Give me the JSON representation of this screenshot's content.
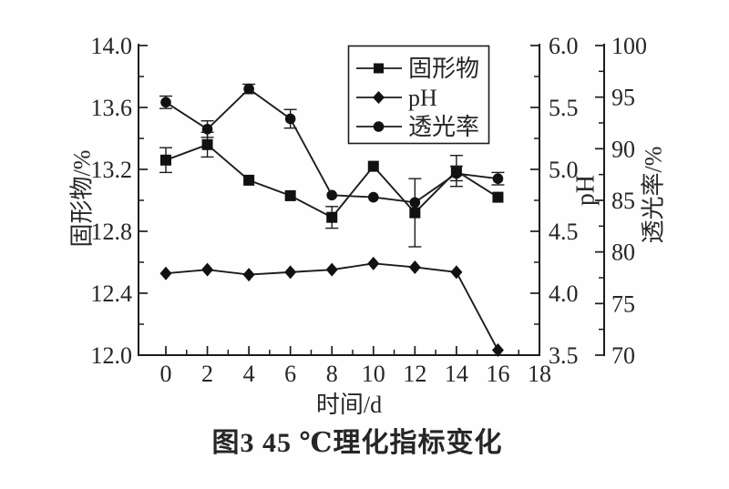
{
  "figure": {
    "caption": "图3  45 ℃理化指标变化"
  },
  "colors": {
    "line": "#1c1c1c",
    "marker": "#111111",
    "text": "#262626",
    "background": "#fefefe"
  },
  "chart_data": {
    "type": "line",
    "title": "图3  45 ℃理化指标变化",
    "x": [
      0,
      2,
      4,
      6,
      8,
      10,
      12,
      14,
      16
    ],
    "xlabel": "时间/d",
    "grid": false,
    "legend_position": "top-right",
    "axes": {
      "x": {
        "label": "时间/d",
        "min": 0,
        "max": 18,
        "major_ticks": [
          "0",
          "2",
          "4",
          "6",
          "8",
          "10",
          "12",
          "14",
          "16",
          "18"
        ],
        "minor_ticks": [
          1,
          3,
          5,
          7,
          9,
          11,
          13,
          15,
          17
        ]
      },
      "left": {
        "label": "固形物/%",
        "min": 12.0,
        "max": 14.0,
        "major_ticks": [
          "14.0",
          "13.6",
          "13.2",
          "12.8",
          "12.4",
          "12.0"
        ],
        "minor_ticks": [
          13.8,
          13.4,
          13.0,
          12.6,
          12.2
        ]
      },
      "ph": {
        "label": "pH",
        "min": 3.5,
        "max": 6.0,
        "major_ticks": [
          "6.0",
          "5.5",
          "5.0",
          "4.5",
          "4.0",
          "3.5"
        ],
        "minor_ticks": [
          5.75,
          5.25,
          4.75,
          4.25,
          3.75
        ]
      },
      "trans": {
        "label": "透光率/%",
        "min": 70,
        "max": 100,
        "major_ticks": [
          "100",
          "95",
          "90",
          "85",
          "80",
          "75",
          "70"
        ],
        "minor_ticks": [
          97.5,
          92.5,
          87.5,
          82.5,
          77.5,
          72.5
        ]
      }
    },
    "series": [
      {
        "id": "solids",
        "name": "固形物",
        "marker": "square",
        "axis": "left",
        "values": [
          13.26,
          13.36,
          13.13,
          13.03,
          12.89,
          13.22,
          12.92,
          13.19,
          13.02
        ],
        "errors": [
          0.08,
          0.08,
          0,
          0,
          0.07,
          0,
          0.22,
          0.1,
          0
        ]
      },
      {
        "id": "ph",
        "name": "pH",
        "marker": "diamond",
        "axis": "ph",
        "values": [
          4.16,
          4.19,
          4.15,
          4.17,
          4.19,
          4.24,
          4.21,
          4.17,
          3.54
        ],
        "errors": [
          0,
          0,
          0,
          0,
          0,
          0,
          0,
          0,
          0
        ]
      },
      {
        "id": "trans",
        "name": "透光率",
        "marker": "circle",
        "axis": "trans",
        "values": [
          94.5,
          91.9,
          95.8,
          92.9,
          85.5,
          85.3,
          84.8,
          87.6,
          87.1
        ],
        "errors": [
          0.6,
          0.8,
          0.45,
          0.9,
          0,
          0,
          0,
          0.7,
          0.6
        ]
      }
    ]
  }
}
